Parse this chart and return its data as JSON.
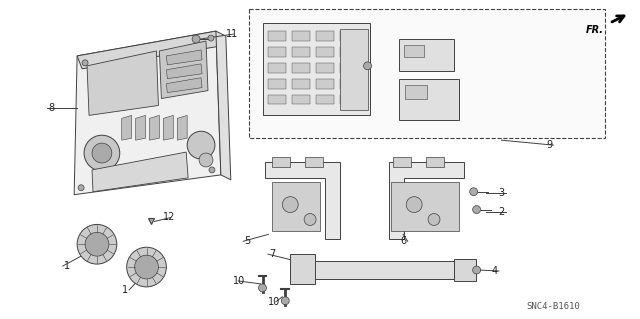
{
  "background_color": "#ffffff",
  "line_color": "#404040",
  "text_color": "#222222",
  "part_number": "SNC4-B1610",
  "figsize": [
    6.4,
    3.19
  ],
  "dpi": 100,
  "label_fontsize": 7.0,
  "label_color": "#222222"
}
